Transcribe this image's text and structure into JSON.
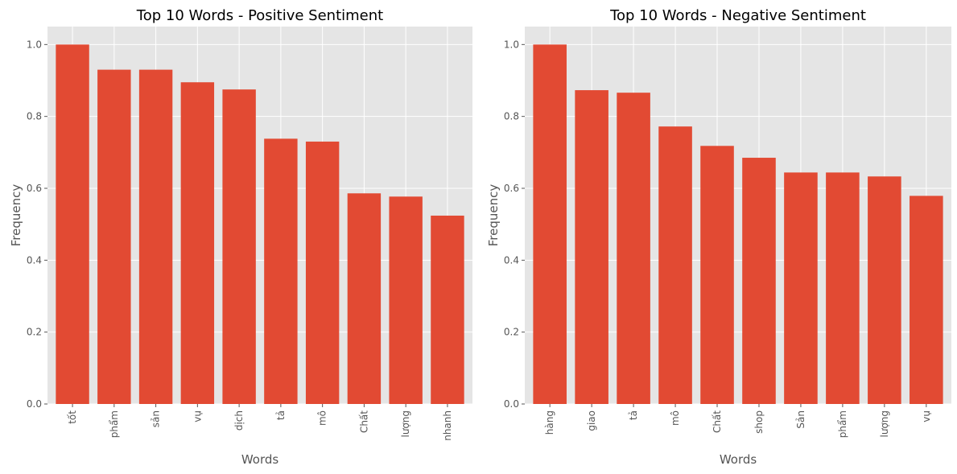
{
  "chart_data": [
    {
      "type": "bar",
      "title": "Top 10 Words - Positive Sentiment",
      "xlabel": "Words",
      "ylabel": "Frequency",
      "categories": [
        "tốt",
        "phẩm",
        "sản",
        "vụ",
        "dịch",
        "tả",
        "mô",
        "Chất",
        "lượng",
        "nhanh"
      ],
      "values": [
        1.0,
        0.93,
        0.93,
        0.895,
        0.875,
        0.738,
        0.73,
        0.586,
        0.577,
        0.524
      ],
      "ylim": [
        0,
        1.05
      ],
      "yticks": [
        0.0,
        0.2,
        0.4,
        0.6,
        0.8,
        1.0
      ],
      "ytick_labels": [
        "0.0",
        "0.2",
        "0.4",
        "0.6",
        "0.8",
        "1.0"
      ],
      "grid": true,
      "bar_color": "#E24A33",
      "background_color": "#E5E5E5"
    },
    {
      "type": "bar",
      "title": "Top 10 Words - Negative Sentiment",
      "xlabel": "Words",
      "ylabel": "Frequency",
      "categories": [
        "hàng",
        "giao",
        "tả",
        "mô",
        "Chất",
        "shop",
        "Sản",
        "phẩm",
        "lượng",
        "vụ"
      ],
      "values": [
        1.0,
        0.873,
        0.866,
        0.772,
        0.718,
        0.685,
        0.644,
        0.644,
        0.633,
        0.579
      ],
      "ylim": [
        0,
        1.05
      ],
      "yticks": [
        0.0,
        0.2,
        0.4,
        0.6,
        0.8,
        1.0
      ],
      "ytick_labels": [
        "0.0",
        "0.2",
        "0.4",
        "0.6",
        "0.8",
        "1.0"
      ],
      "grid": true,
      "bar_color": "#E24A33",
      "background_color": "#E5E5E5"
    }
  ]
}
